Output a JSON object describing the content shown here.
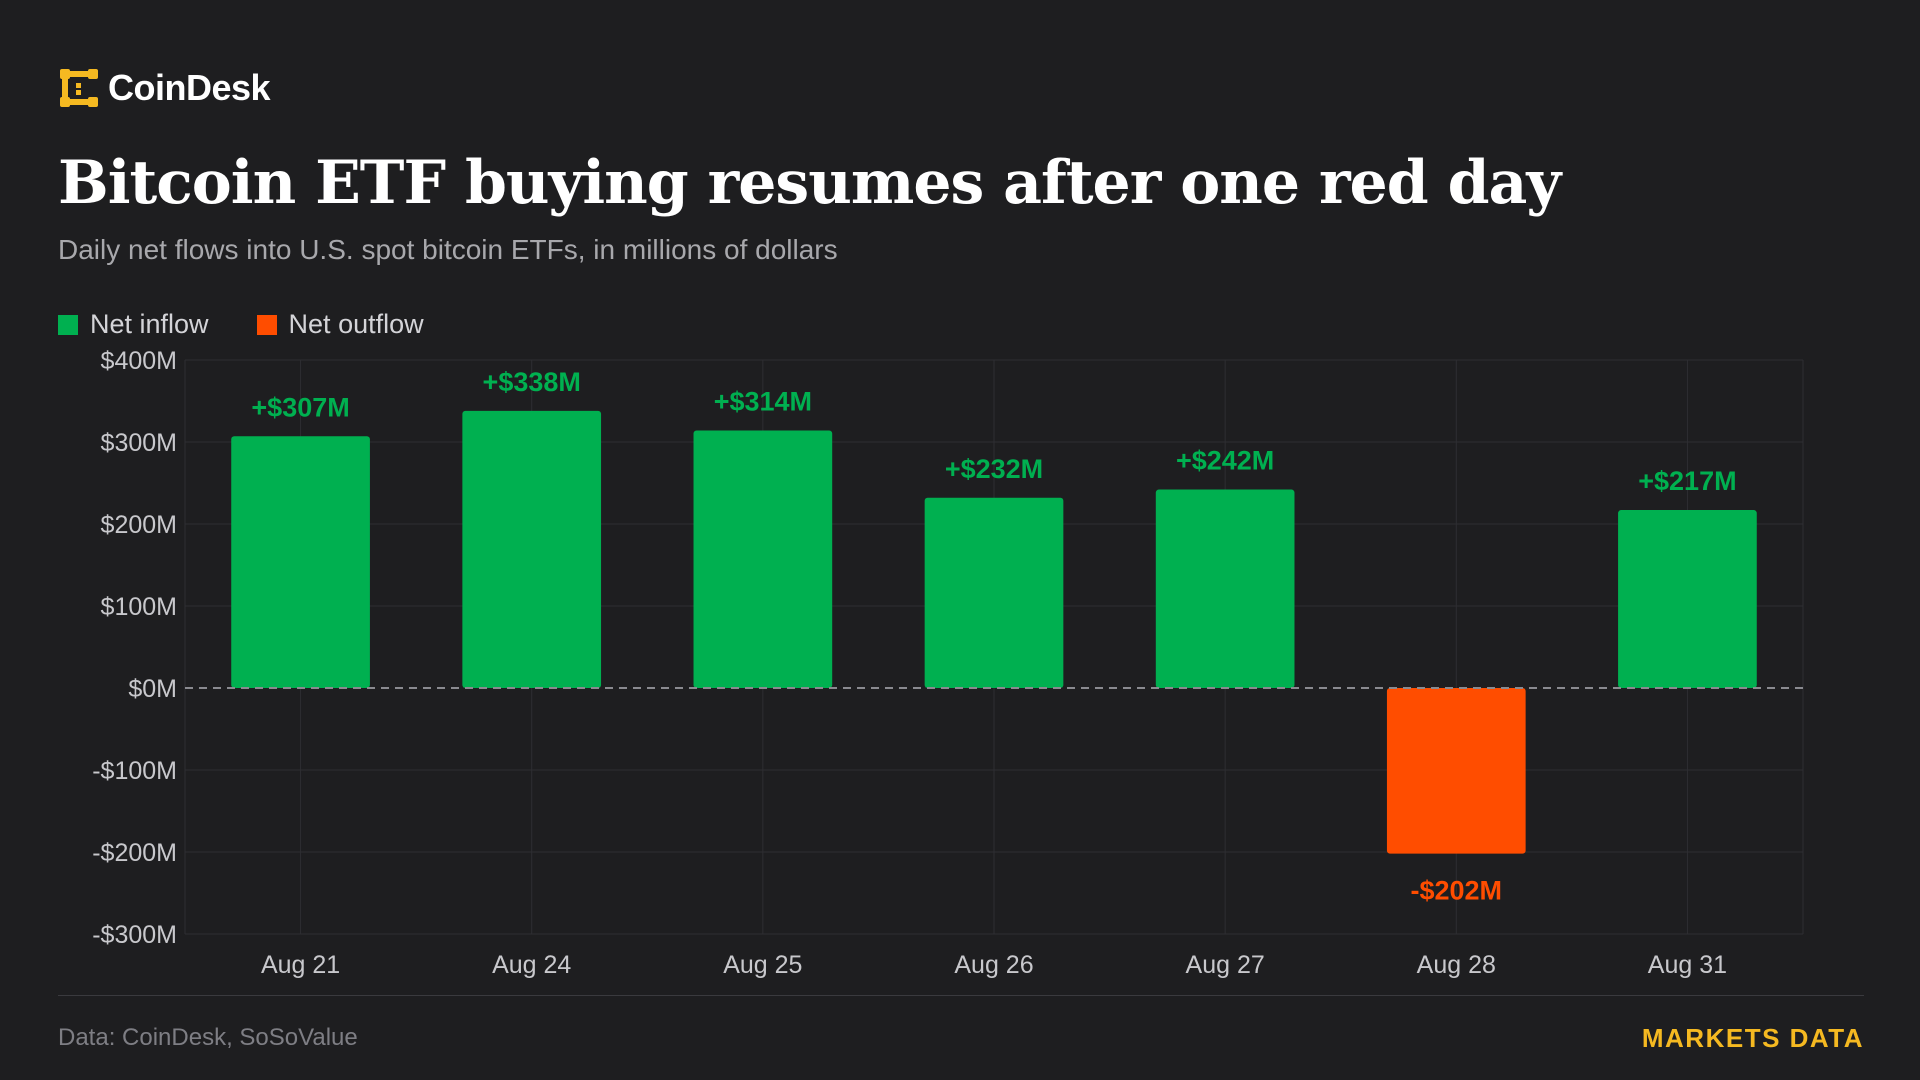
{
  "brand": {
    "name": "CoinDesk",
    "logo_icon": "coindesk-logo-icon",
    "logo_color": "#f5b921"
  },
  "title": "Bitcoin ETF buying resumes after one red day",
  "subtitle": "Daily net flows into U.S. spot bitcoin ETFs, in millions of dollars",
  "legend": [
    {
      "label": "Net inflow",
      "color": "#00b050"
    },
    {
      "label": "Net outflow",
      "color": "#ff4d00"
    }
  ],
  "footer": {
    "source": "Data: CoinDesk, SoSoValue",
    "tag": "MARKETS DATA"
  },
  "chart_data": {
    "type": "bar",
    "categories": [
      "Aug 21",
      "Aug 24",
      "Aug 25",
      "Aug 26",
      "Aug 27",
      "Aug 28",
      "Aug 31"
    ],
    "values": [
      307,
      338,
      314,
      232,
      242,
      -202,
      217
    ],
    "data_labels": [
      "+$307M",
      "+$338M",
      "+$314M",
      "+$232M",
      "+$242M",
      "-$202M",
      "+$217M"
    ],
    "title": "Bitcoin ETF buying resumes after one red day",
    "subtitle": "Daily net flows into U.S. spot bitcoin ETFs, in millions of dollars",
    "xlabel": "",
    "ylabel": "",
    "ylim": [
      -300,
      400
    ],
    "y_ticks": [
      400,
      300,
      200,
      100,
      0,
      -100,
      -200,
      -300
    ],
    "y_tick_labels": [
      "$400M",
      "$300M",
      "$200M",
      "$100M",
      "$0M",
      "-$100M",
      "-$200M",
      "-$300M"
    ],
    "grid": true,
    "zero_line": "dashed",
    "legend_position": "top-left",
    "positive_color": "#00b050",
    "negative_color": "#ff4d00",
    "units": "millions of dollars"
  }
}
